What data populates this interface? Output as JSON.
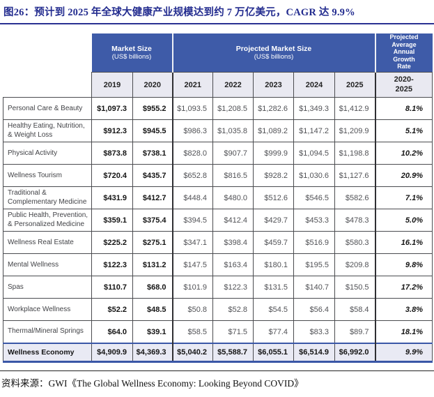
{
  "title": "图26：预计到 2025 年全球大健康产业规模达到约 7 万亿美元，CAGR 达 9.9%",
  "source": "资料来源：GWI《The Global Wellness Economy: Looking Beyond COVID》",
  "colors": {
    "header_blue": "#3e5ba8",
    "year_row_bg": "#e9e9f1",
    "total_row_bg": "#e9eaf4",
    "total_row_border": "#3a57a7",
    "title_navy": "#232c8f",
    "cell_border": "#4a4b4f"
  },
  "table": {
    "group_headers": {
      "market_size": "Market Size",
      "market_size_sub": "(US$ billions)",
      "projected": "Projected Market Size",
      "projected_sub": "(US$ billions)",
      "growth": "Projected Average Annual Growth Rate"
    },
    "year_headers": [
      "2019",
      "2020",
      "2021",
      "2022",
      "2023",
      "2024",
      "2025"
    ],
    "growth_period": "2020- 2025",
    "rows": [
      {
        "label": "Personal Care & Beauty",
        "values": [
          "$1,097.3",
          "$955.2",
          "$1,093.5",
          "$1,208.5",
          "$1,282.6",
          "$1,349.3",
          "$1,412.9"
        ],
        "growth": "8.1%",
        "is_total": false
      },
      {
        "label": "Healthy Eating, Nutrition, & Weight Loss",
        "values": [
          "$912.3",
          "$945.5",
          "$986.3",
          "$1,035.8",
          "$1,089.2",
          "$1,147.2",
          "$1,209.9"
        ],
        "growth": "5.1%",
        "is_total": false
      },
      {
        "label": "Physical Activity",
        "values": [
          "$873.8",
          "$738.1",
          "$828.0",
          "$907.7",
          "$999.9",
          "$1,094.5",
          "$1,198.8"
        ],
        "growth": "10.2%",
        "is_total": false
      },
      {
        "label": "Wellness Tourism",
        "values": [
          "$720.4",
          "$435.7",
          "$652.8",
          "$816.5",
          "$928.2",
          "$1,030.6",
          "$1,127.6"
        ],
        "growth": "20.9%",
        "is_total": false
      },
      {
        "label": "Traditional & Complementary Medicine",
        "values": [
          "$431.9",
          "$412.7",
          "$448.4",
          "$480.0",
          "$512.6",
          "$546.5",
          "$582.6"
        ],
        "growth": "7.1%",
        "is_total": false
      },
      {
        "label": "Public Health, Prevention, & Personalized Medicine",
        "values": [
          "$359.1",
          "$375.4",
          "$394.5",
          "$412.4",
          "$429.7",
          "$453.3",
          "$478.3"
        ],
        "growth": "5.0%",
        "is_total": false
      },
      {
        "label": "Wellness Real Estate",
        "values": [
          "$225.2",
          "$275.1",
          "$347.1",
          "$398.4",
          "$459.7",
          "$516.9",
          "$580.3"
        ],
        "growth": "16.1%",
        "is_total": false
      },
      {
        "label": "Mental Wellness",
        "values": [
          "$122.3",
          "$131.2",
          "$147.5",
          "$163.4",
          "$180.1",
          "$195.5",
          "$209.8"
        ],
        "growth": "9.8%",
        "is_total": false
      },
      {
        "label": "Spas",
        "values": [
          "$110.7",
          "$68.0",
          "$101.9",
          "$122.3",
          "$131.5",
          "$140.7",
          "$150.5"
        ],
        "growth": "17.2%",
        "is_total": false
      },
      {
        "label": "Workplace Wellness",
        "values": [
          "$52.2",
          "$48.5",
          "$50.8",
          "$52.8",
          "$54.5",
          "$56.4",
          "$58.4"
        ],
        "growth": "3.8%",
        "is_total": false
      },
      {
        "label": "Thermal/Mineral Springs",
        "values": [
          "$64.0",
          "$39.1",
          "$58.5",
          "$71.5",
          "$77.4",
          "$83.3",
          "$89.7"
        ],
        "growth": "18.1%",
        "is_total": false
      },
      {
        "label": "Wellness Economy",
        "values": [
          "$4,909.9",
          "$4,369.3",
          "$5,040.2",
          "$5,588.7",
          "$6,055.1",
          "$6,514.9",
          "$6,992.0"
        ],
        "growth": "9.9%",
        "is_total": true
      }
    ]
  },
  "chart_data": {
    "type": "table",
    "title": "图26：预计到 2025 年全球大健康产业规模达到约 7 万亿美元，CAGR 达 9.9%",
    "columns": [
      "2019",
      "2020",
      "2021",
      "2022",
      "2023",
      "2024",
      "2025",
      "2020-2025 Projected Average Annual Growth Rate"
    ],
    "units": "US$ billions",
    "rows": [
      {
        "label": "Personal Care & Beauty",
        "values": [
          1097.3,
          955.2,
          1093.5,
          1208.5,
          1282.6,
          1349.3,
          1412.9
        ],
        "growth_pct": 8.1
      },
      {
        "label": "Healthy Eating, Nutrition, & Weight Loss",
        "values": [
          912.3,
          945.5,
          986.3,
          1035.8,
          1089.2,
          1147.2,
          1209.9
        ],
        "growth_pct": 5.1
      },
      {
        "label": "Physical Activity",
        "values": [
          873.8,
          738.1,
          828.0,
          907.7,
          999.9,
          1094.5,
          1198.8
        ],
        "growth_pct": 10.2
      },
      {
        "label": "Wellness Tourism",
        "values": [
          720.4,
          435.7,
          652.8,
          816.5,
          928.2,
          1030.6,
          1127.6
        ],
        "growth_pct": 20.9
      },
      {
        "label": "Traditional & Complementary Medicine",
        "values": [
          431.9,
          412.7,
          448.4,
          480.0,
          512.6,
          546.5,
          582.6
        ],
        "growth_pct": 7.1
      },
      {
        "label": "Public Health, Prevention, & Personalized Medicine",
        "values": [
          359.1,
          375.4,
          394.5,
          412.4,
          429.7,
          453.3,
          478.3
        ],
        "growth_pct": 5.0
      },
      {
        "label": "Wellness Real Estate",
        "values": [
          225.2,
          275.1,
          347.1,
          398.4,
          459.7,
          516.9,
          580.3
        ],
        "growth_pct": 16.1
      },
      {
        "label": "Mental Wellness",
        "values": [
          122.3,
          131.2,
          147.5,
          163.4,
          180.1,
          195.5,
          209.8
        ],
        "growth_pct": 9.8
      },
      {
        "label": "Spas",
        "values": [
          110.7,
          68.0,
          101.9,
          122.3,
          131.5,
          140.7,
          150.5
        ],
        "growth_pct": 17.2
      },
      {
        "label": "Workplace Wellness",
        "values": [
          52.2,
          48.5,
          50.8,
          52.8,
          54.5,
          56.4,
          58.4
        ],
        "growth_pct": 3.8
      },
      {
        "label": "Thermal/Mineral Springs",
        "values": [
          64.0,
          39.1,
          58.5,
          71.5,
          77.4,
          83.3,
          89.7
        ],
        "growth_pct": 18.1
      },
      {
        "label": "Wellness Economy",
        "values": [
          4909.9,
          4369.3,
          5040.2,
          5588.7,
          6055.1,
          6514.9,
          6992.0
        ],
        "growth_pct": 9.9
      }
    ]
  }
}
